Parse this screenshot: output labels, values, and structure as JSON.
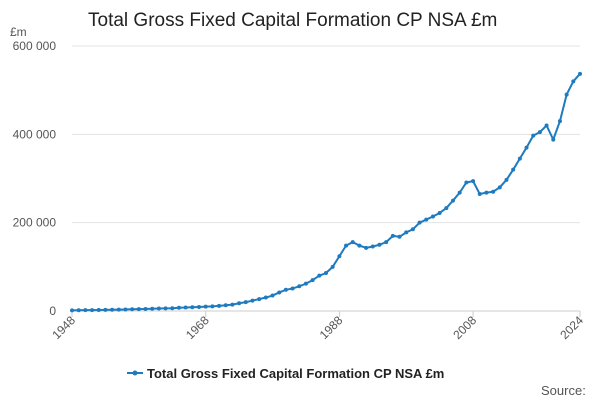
{
  "chart_data": {
    "type": "line",
    "title": "Total Gross Fixed Capital Formation CP NSA £m",
    "ylabel": "£m",
    "xlabel": "",
    "ylim": [
      0,
      600000
    ],
    "xlim": [
      1948,
      2024
    ],
    "yticks": [
      0,
      200000,
      400000,
      600000
    ],
    "ytick_labels": [
      "0",
      "200 000",
      "400 000",
      "600 000"
    ],
    "xticks": [
      1948,
      1968,
      1988,
      2008,
      2024
    ],
    "xtick_labels": [
      "1948",
      "1968",
      "1988",
      "2008",
      "2024"
    ],
    "grid": true,
    "legend": "bottom",
    "series_color": "#1f7bbf",
    "series": [
      {
        "name": "Total Gross Fixed Capital Formation CP NSA £m",
        "x": [
          1948,
          1949,
          1950,
          1951,
          1952,
          1953,
          1954,
          1955,
          1956,
          1957,
          1958,
          1959,
          1960,
          1961,
          1962,
          1963,
          1964,
          1965,
          1966,
          1967,
          1968,
          1969,
          1970,
          1971,
          1972,
          1973,
          1974,
          1975,
          1976,
          1977,
          1978,
          1979,
          1980,
          1981,
          1982,
          1983,
          1984,
          1985,
          1986,
          1987,
          1988,
          1989,
          1990,
          1991,
          1992,
          1993,
          1994,
          1995,
          1996,
          1997,
          1998,
          1999,
          2000,
          2001,
          2002,
          2003,
          2004,
          2005,
          2006,
          2007,
          2008,
          2009,
          2010,
          2011,
          2012,
          2013,
          2014,
          2015,
          2016,
          2017,
          2018,
          2019,
          2020,
          2021,
          2022,
          2023,
          2024
        ],
        "values": [
          1500,
          1700,
          1900,
          2100,
          2300,
          2600,
          2900,
          3200,
          3500,
          3900,
          4200,
          4600,
          5100,
          5700,
          6000,
          6300,
          7300,
          7900,
          8500,
          9100,
          10000,
          10600,
          11700,
          13000,
          14500,
          17500,
          20000,
          23500,
          27000,
          30500,
          35000,
          42000,
          48000,
          51000,
          56000,
          62000,
          70000,
          80000,
          86000,
          100000,
          124000,
          148000,
          156000,
          148000,
          143000,
          146000,
          150000,
          156000,
          170000,
          168000,
          178000,
          185000,
          200000,
          207000,
          214000,
          222000,
          233000,
          250000,
          268000,
          291000,
          294000,
          265000,
          268000,
          270000,
          280000,
          297000,
          320000,
          345000,
          370000,
          397000,
          405000,
          420000,
          388000,
          430000,
          490000,
          520000,
          537000
        ]
      }
    ],
    "source_label": "Source:"
  }
}
